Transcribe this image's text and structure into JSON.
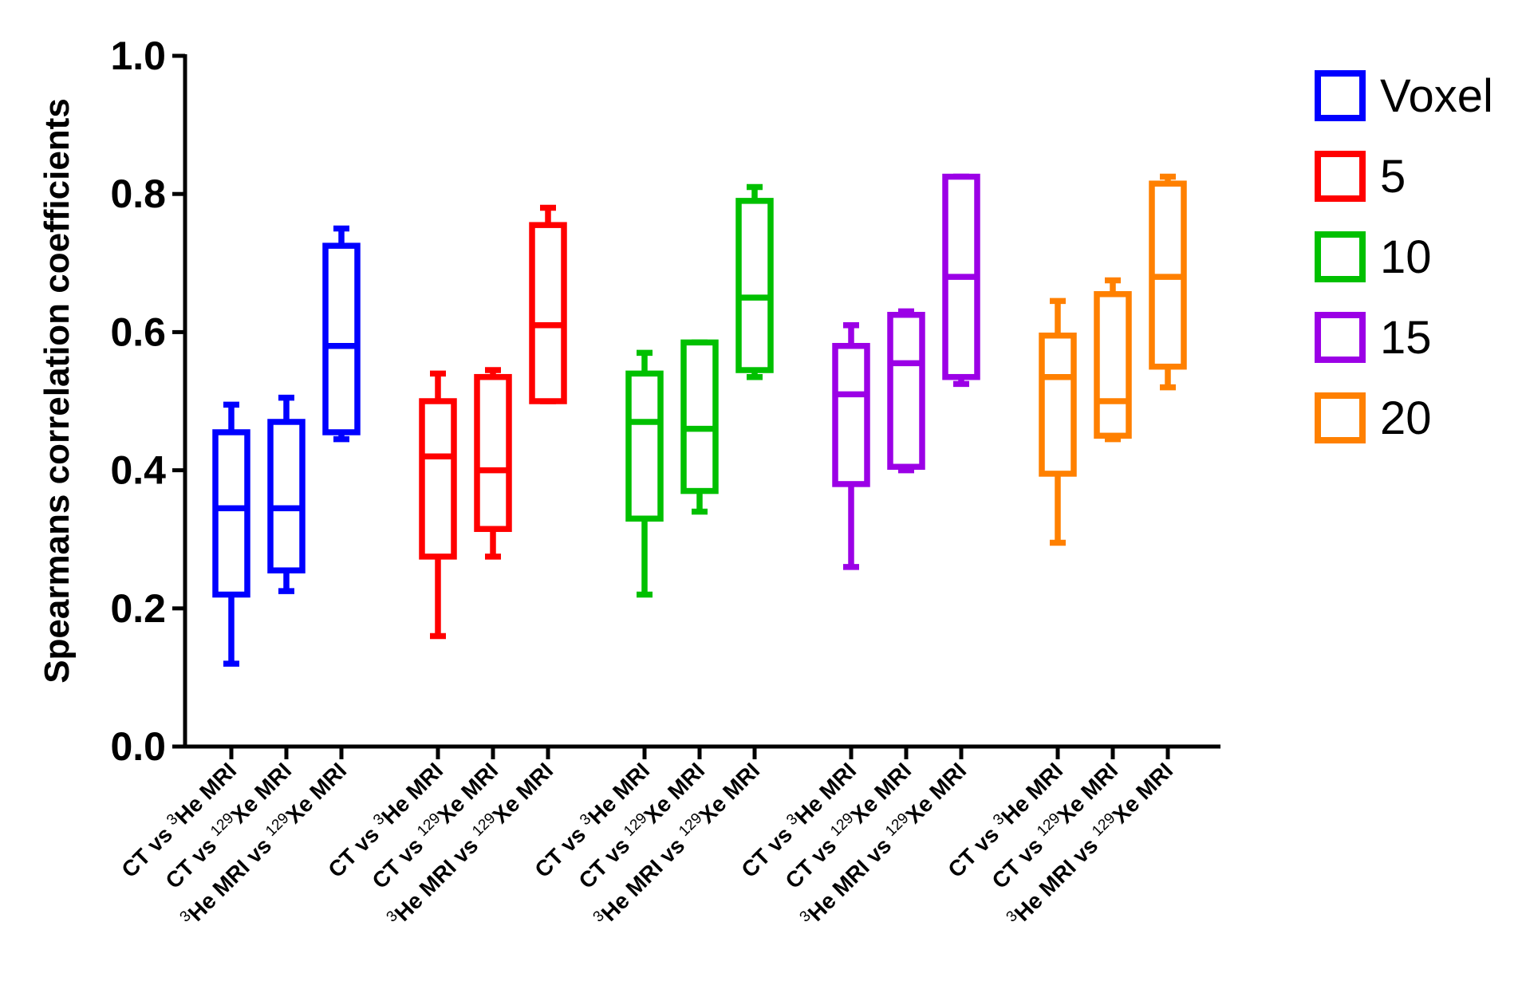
{
  "chart_data": {
    "type": "box",
    "title": "",
    "xlabel": "",
    "ylabel": "Spearmans correlation coefficients",
    "ylim": [
      0,
      1.0
    ],
    "yticks": [
      "0.0",
      "0.2",
      "0.4",
      "0.6",
      "0.8",
      "1.0"
    ],
    "grid": false,
    "legend_position": "top-right",
    "category_parts": [
      {
        "pre": "",
        "presup": "",
        "mid": "CT vs ",
        "sup": "3",
        "post": "He MRI"
      },
      {
        "pre": "",
        "presup": "",
        "mid": "CT vs ",
        "sup": "129",
        "post": "Xe MRI"
      },
      {
        "pre": "He MRI vs ",
        "presup": "3",
        "mid": "",
        "sup": "129",
        "post": "Xe MRI"
      }
    ],
    "categories": [
      "CT vs 3He MRI",
      "CT vs 129Xe MRI",
      "3He MRI vs 129Xe MRI"
    ],
    "series": [
      {
        "name": "Voxel",
        "color": "#0000ff",
        "boxes": [
          {
            "min": 0.12,
            "q1": 0.22,
            "median": 0.345,
            "q3": 0.455,
            "max": 0.495
          },
          {
            "min": 0.225,
            "q1": 0.255,
            "median": 0.345,
            "q3": 0.47,
            "max": 0.505
          },
          {
            "min": 0.445,
            "q1": 0.455,
            "median": 0.58,
            "q3": 0.725,
            "max": 0.75
          }
        ]
      },
      {
        "name": "5",
        "color": "#ff0000",
        "boxes": [
          {
            "min": 0.16,
            "q1": 0.275,
            "median": 0.42,
            "q3": 0.5,
            "max": 0.54
          },
          {
            "min": 0.275,
            "q1": 0.315,
            "median": 0.4,
            "q3": 0.535,
            "max": 0.545
          },
          {
            "min": 0.5,
            "q1": 0.5,
            "median": 0.61,
            "q3": 0.755,
            "max": 0.78
          }
        ]
      },
      {
        "name": "10",
        "color": "#00c000",
        "boxes": [
          {
            "min": 0.22,
            "q1": 0.33,
            "median": 0.47,
            "q3": 0.54,
            "max": 0.57
          },
          {
            "min": 0.34,
            "q1": 0.37,
            "median": 0.46,
            "q3": 0.585,
            "max": 0.585
          },
          {
            "min": 0.535,
            "q1": 0.545,
            "median": 0.65,
            "q3": 0.79,
            "max": 0.81
          }
        ]
      },
      {
        "name": "15",
        "color": "#9b00e6",
        "boxes": [
          {
            "min": 0.26,
            "q1": 0.38,
            "median": 0.51,
            "q3": 0.58,
            "max": 0.61
          },
          {
            "min": 0.4,
            "q1": 0.405,
            "median": 0.555,
            "q3": 0.625,
            "max": 0.63
          },
          {
            "min": 0.525,
            "q1": 0.535,
            "median": 0.68,
            "q3": 0.825,
            "max": 0.825
          }
        ]
      },
      {
        "name": "20",
        "color": "#ff8000",
        "boxes": [
          {
            "min": 0.295,
            "q1": 0.395,
            "median": 0.535,
            "q3": 0.595,
            "max": 0.645
          },
          {
            "min": 0.445,
            "q1": 0.45,
            "median": 0.5,
            "q3": 0.655,
            "max": 0.675
          },
          {
            "min": 0.52,
            "q1": 0.55,
            "median": 0.68,
            "q3": 0.815,
            "max": 0.825
          }
        ]
      }
    ]
  }
}
